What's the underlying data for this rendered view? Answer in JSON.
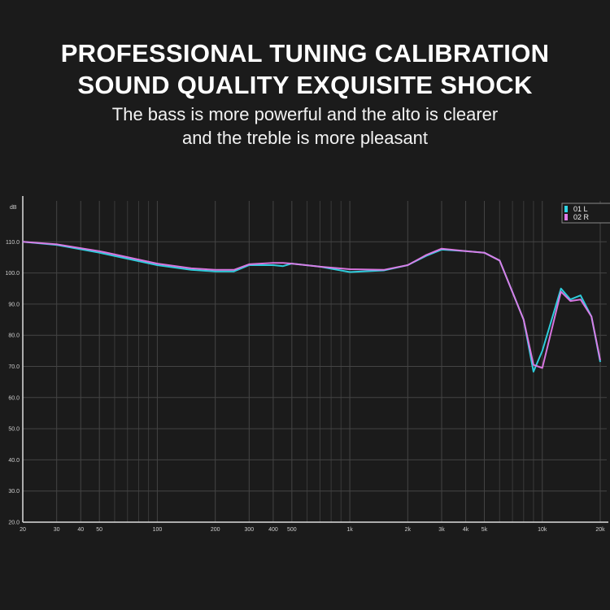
{
  "header": {
    "title_line1": "PROFESSIONAL TUNING CALIBRATION",
    "title_line2": "SOUND QUALITY EXQUISITE SHOCK",
    "subtitle_line1": "The bass is more powerful and the alto is clearer",
    "subtitle_line2": "and the treble is more pleasant"
  },
  "chart_data": {
    "type": "line",
    "title": "",
    "xlabel": "",
    "ylabel": "dB",
    "x_scale": "log",
    "xlim": [
      20,
      20000
    ],
    "ylim": [
      20,
      120
    ],
    "grid": true,
    "legend_placement": "top-right",
    "x_ticks": [
      {
        "v": 20,
        "label": "20"
      },
      {
        "v": 30,
        "label": "30"
      },
      {
        "v": 40,
        "label": "40"
      },
      {
        "v": 50,
        "label": "50"
      },
      {
        "v": 100,
        "label": "100"
      },
      {
        "v": 200,
        "label": "200"
      },
      {
        "v": 300,
        "label": "300"
      },
      {
        "v": 400,
        "label": "400"
      },
      {
        "v": 500,
        "label": "500"
      },
      {
        "v": 1000,
        "label": "1k"
      },
      {
        "v": 2000,
        "label": "2k"
      },
      {
        "v": 3000,
        "label": "3k"
      },
      {
        "v": 4000,
        "label": "4k"
      },
      {
        "v": 5000,
        "label": "5k"
      },
      {
        "v": 10000,
        "label": "10k"
      },
      {
        "v": 20000,
        "label": "20k"
      }
    ],
    "x_minor_grid": [
      60,
      70,
      80,
      90,
      600,
      700,
      800,
      900,
      6000,
      7000,
      8000,
      9000
    ],
    "y_ticks": [
      {
        "v": 20,
        "label": "20.0"
      },
      {
        "v": 30,
        "label": "30.0"
      },
      {
        "v": 40,
        "label": "40.0"
      },
      {
        "v": 50,
        "label": "50.0"
      },
      {
        "v": 60,
        "label": "60.0"
      },
      {
        "v": 70,
        "label": "70.0"
      },
      {
        "v": 80,
        "label": "80.0"
      },
      {
        "v": 90,
        "label": "90.0"
      },
      {
        "v": 100,
        "label": "100.0"
      },
      {
        "v": 110,
        "label": "110.0"
      }
    ],
    "series": [
      {
        "name": "01 L",
        "color": "#2fd6e6",
        "x": [
          20,
          30,
          50,
          100,
          150,
          200,
          250,
          300,
          400,
          450,
          500,
          700,
          1000,
          1500,
          2000,
          2500,
          3000,
          4000,
          5000,
          6000,
          8000,
          9000,
          10000,
          12500,
          14000,
          15800,
          18000,
          20000
        ],
        "y": [
          110,
          109,
          106.5,
          102.5,
          101,
          100.5,
          100.5,
          102.5,
          102.5,
          102.2,
          103,
          102,
          100.3,
          100.8,
          102.5,
          105.5,
          107.5,
          107,
          106.5,
          104,
          85,
          68.3,
          75,
          95,
          91.5,
          92.8,
          86,
          71.4
        ]
      },
      {
        "name": "02 R",
        "color": "#e07ae8",
        "x": [
          20,
          30,
          50,
          100,
          150,
          200,
          250,
          300,
          400,
          450,
          500,
          700,
          1000,
          1500,
          2000,
          2500,
          3000,
          4000,
          5000,
          6000,
          8000,
          9000,
          10000,
          12500,
          14000,
          15800,
          18000,
          20000
        ],
        "y": [
          110,
          109.2,
          107,
          103,
          101.5,
          101,
          101,
          102.8,
          103.2,
          103.2,
          103,
          102,
          101.2,
          101,
          102.5,
          105.8,
          107.8,
          107,
          106.5,
          104,
          85,
          70.5,
          69.5,
          94,
          91,
          91.5,
          86,
          72
        ]
      }
    ]
  }
}
